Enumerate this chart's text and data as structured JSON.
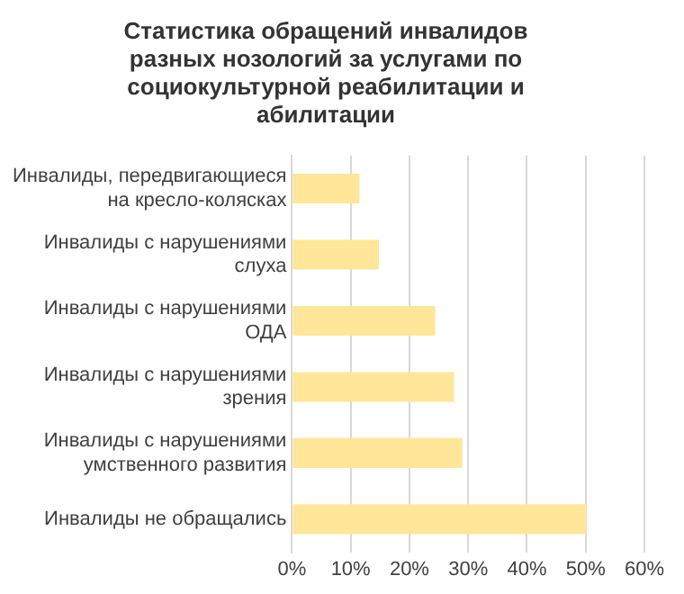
{
  "chart_data": {
    "type": "bar",
    "orientation": "horizontal",
    "title": "Статистика обращений инвалидов разных нозологий за услугами по социокультурной реабилитации и абилитации",
    "categories": [
      "Инвалиды, передвигающиеся на кресло-колясках",
      "Инвалиды с нарушениями слуха",
      "Инвалиды с нарушениями ОДА",
      "Инвалиды с нарушениями зрения",
      "Инвалиды с нарушениями умственного развития",
      "Инвалиды не обращались"
    ],
    "values": [
      11.5,
      14.8,
      24.4,
      27.6,
      29,
      50.1
    ],
    "color": "#ffe699",
    "xlim": [
      0,
      60
    ],
    "xticks": [
      {
        "value": 0,
        "label": "0%"
      },
      {
        "value": 10,
        "label": "10%"
      },
      {
        "value": 20,
        "label": "20%"
      },
      {
        "value": 30,
        "label": "30%"
      },
      {
        "value": 40,
        "label": "40%"
      },
      {
        "value": 50,
        "label": "50%"
      },
      {
        "value": 60,
        "label": "60%"
      }
    ],
    "grid": "x",
    "legend": false
  }
}
